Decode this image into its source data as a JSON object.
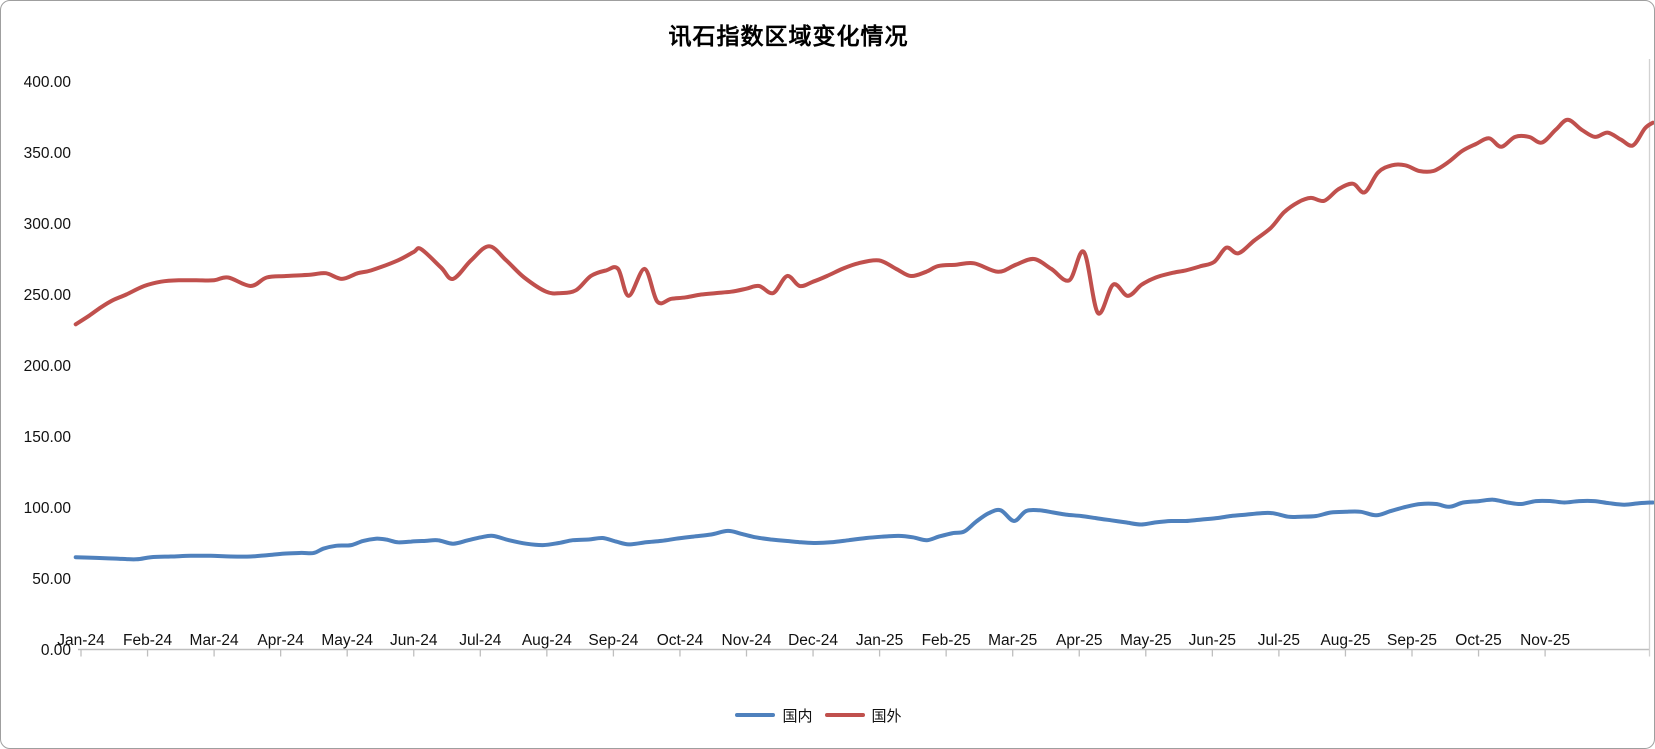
{
  "title": "讯石指数区域变化情况",
  "legend": [
    {
      "id": "domestic",
      "label": "国内",
      "color": "#4F81BD"
    },
    {
      "id": "overseas",
      "label": "国外",
      "color": "#C0504D"
    }
  ],
  "axis_style": {
    "line_color": "#BFBFBF",
    "label_color": "#111111"
  },
  "chart_data": {
    "type": "line",
    "title": "讯石指数区域变化情况",
    "xlabel": "",
    "ylabel": "",
    "ylim": [
      0,
      400
    ],
    "grid": false,
    "legend_position": "bottom-center",
    "x_unit": "fractional months since Jan-24 (approx. weekly samples)",
    "x_tick_labels": [
      "Jan-24",
      "Feb-24",
      "Mar-24",
      "Apr-24",
      "May-24",
      "Jun-24",
      "Jul-24",
      "Aug-24",
      "Sep-24",
      "Oct-24",
      "Nov-24",
      "Dec-24",
      "Jan-25",
      "Feb-25",
      "Mar-25",
      "Apr-25",
      "May-25",
      "Jun-25",
      "Jul-25",
      "Aug-25",
      "Sep-25",
      "Oct-25",
      "Nov-25"
    ],
    "y_tick_labels": [
      "0.00",
      "50.00",
      "100.00",
      "150.00",
      "200.00",
      "250.00",
      "300.00",
      "350.00",
      "400.00"
    ],
    "y_tick_values": [
      0,
      50,
      100,
      150,
      200,
      250,
      300,
      350,
      400
    ],
    "series": [
      {
        "id": "domestic",
        "name": "国内",
        "color": "#4F81BD",
        "points": [
          [
            -0.08,
            65
          ],
          [
            0.23,
            64.5
          ],
          [
            0.53,
            64
          ],
          [
            0.83,
            63.5
          ],
          [
            1.05,
            65
          ],
          [
            1.35,
            65.5
          ],
          [
            1.65,
            66
          ],
          [
            1.95,
            66
          ],
          [
            2.25,
            65.5
          ],
          [
            2.55,
            65.5
          ],
          [
            2.81,
            66.5
          ],
          [
            3.05,
            67.5
          ],
          [
            3.31,
            68
          ],
          [
            3.5,
            68
          ],
          [
            3.64,
            71
          ],
          [
            3.83,
            73
          ],
          [
            4.06,
            73.5
          ],
          [
            4.24,
            76.5
          ],
          [
            4.43,
            78
          ],
          [
            4.58,
            77.5
          ],
          [
            4.76,
            75.5
          ],
          [
            4.96,
            76
          ],
          [
            5.18,
            76.5
          ],
          [
            5.36,
            77
          ],
          [
            5.59,
            74.5
          ],
          [
            5.82,
            77
          ],
          [
            6.01,
            79
          ],
          [
            6.19,
            80
          ],
          [
            6.43,
            77
          ],
          [
            6.69,
            74.5
          ],
          [
            6.94,
            73.5
          ],
          [
            7.18,
            75
          ],
          [
            7.39,
            77
          ],
          [
            7.63,
            77.5
          ],
          [
            7.84,
            78.5
          ],
          [
            8.04,
            76
          ],
          [
            8.23,
            74
          ],
          [
            8.49,
            75.5
          ],
          [
            8.72,
            76.5
          ],
          [
            8.94,
            78
          ],
          [
            9.2,
            79.5
          ],
          [
            9.47,
            81
          ],
          [
            9.72,
            83.5
          ],
          [
            9.92,
            81.5
          ],
          [
            10.14,
            79
          ],
          [
            10.37,
            77.5
          ],
          [
            10.59,
            76.5
          ],
          [
            10.82,
            75.5
          ],
          [
            11.04,
            75
          ],
          [
            11.27,
            75.5
          ],
          [
            11.54,
            77
          ],
          [
            11.8,
            78.5
          ],
          [
            12.05,
            79.5
          ],
          [
            12.29,
            80
          ],
          [
            12.5,
            79
          ],
          [
            12.71,
            77
          ],
          [
            12.89,
            79.5
          ],
          [
            13.1,
            82
          ],
          [
            13.27,
            83
          ],
          [
            13.45,
            90
          ],
          [
            13.64,
            96
          ],
          [
            13.82,
            98
          ],
          [
            14.02,
            90.5
          ],
          [
            14.2,
            97.5
          ],
          [
            14.4,
            98
          ],
          [
            14.61,
            96.5
          ],
          [
            14.8,
            95
          ],
          [
            15.03,
            94
          ],
          [
            15.25,
            92.5
          ],
          [
            15.48,
            91
          ],
          [
            15.7,
            89.5
          ],
          [
            15.93,
            88
          ],
          [
            16.15,
            89.5
          ],
          [
            16.38,
            90.5
          ],
          [
            16.6,
            90.5
          ],
          [
            16.83,
            91.5
          ],
          [
            17.06,
            92.5
          ],
          [
            17.28,
            94
          ],
          [
            17.51,
            95
          ],
          [
            17.73,
            96
          ],
          [
            17.91,
            96
          ],
          [
            18.14,
            93.5
          ],
          [
            18.33,
            93.5
          ],
          [
            18.56,
            94
          ],
          [
            18.78,
            96.5
          ],
          [
            19.01,
            97
          ],
          [
            19.23,
            97
          ],
          [
            19.46,
            94.5
          ],
          [
            19.68,
            97.5
          ],
          [
            19.91,
            100.5
          ],
          [
            20.13,
            102.5
          ],
          [
            20.36,
            102.5
          ],
          [
            20.56,
            100.5
          ],
          [
            20.77,
            103.5
          ],
          [
            21.01,
            104.5
          ],
          [
            21.22,
            105.5
          ],
          [
            21.44,
            103.5
          ],
          [
            21.64,
            102.5
          ],
          [
            21.86,
            104.5
          ],
          [
            22.09,
            104.5
          ],
          [
            22.29,
            103.5
          ],
          [
            22.51,
            104.5
          ],
          [
            22.74,
            104.5
          ],
          [
            22.96,
            103
          ],
          [
            23.19,
            102
          ],
          [
            23.41,
            103
          ],
          [
            23.62,
            103.5
          ]
        ]
      },
      {
        "id": "overseas",
        "name": "国外",
        "color": "#C0504D",
        "points": [
          [
            -0.08,
            229
          ],
          [
            0.12,
            235
          ],
          [
            0.3,
            241
          ],
          [
            0.48,
            246
          ],
          [
            0.68,
            250
          ],
          [
            0.95,
            256
          ],
          [
            1.2,
            259
          ],
          [
            1.47,
            260
          ],
          [
            1.73,
            260
          ],
          [
            2.0,
            260
          ],
          [
            2.21,
            262
          ],
          [
            2.55,
            256
          ],
          [
            2.79,
            262
          ],
          [
            3.08,
            263
          ],
          [
            3.46,
            264
          ],
          [
            3.68,
            265
          ],
          [
            3.92,
            261
          ],
          [
            4.16,
            265
          ],
          [
            4.36,
            267
          ],
          [
            4.76,
            274
          ],
          [
            5.0,
            280
          ],
          [
            5.11,
            282
          ],
          [
            5.41,
            269
          ],
          [
            5.59,
            261
          ],
          [
            5.86,
            274
          ],
          [
            6.13,
            284
          ],
          [
            6.39,
            274
          ],
          [
            6.66,
            262
          ],
          [
            6.99,
            252
          ],
          [
            7.21,
            251
          ],
          [
            7.44,
            253
          ],
          [
            7.66,
            263
          ],
          [
            7.89,
            267
          ],
          [
            8.07,
            268
          ],
          [
            8.23,
            249
          ],
          [
            8.47,
            268
          ],
          [
            8.66,
            245
          ],
          [
            8.87,
            247
          ],
          [
            9.09,
            248
          ],
          [
            9.32,
            250
          ],
          [
            9.54,
            251
          ],
          [
            9.77,
            252
          ],
          [
            9.99,
            254
          ],
          [
            10.19,
            256
          ],
          [
            10.4,
            251
          ],
          [
            10.61,
            263
          ],
          [
            10.8,
            256
          ],
          [
            11.0,
            259
          ],
          [
            11.21,
            263
          ],
          [
            11.44,
            268
          ],
          [
            11.68,
            272
          ],
          [
            11.99,
            274
          ],
          [
            12.25,
            268
          ],
          [
            12.47,
            263
          ],
          [
            12.7,
            266
          ],
          [
            12.88,
            270
          ],
          [
            13.15,
            271
          ],
          [
            13.42,
            272
          ],
          [
            13.78,
            266
          ],
          [
            14.05,
            271
          ],
          [
            14.32,
            275
          ],
          [
            14.58,
            268
          ],
          [
            14.85,
            260
          ],
          [
            15.07,
            280
          ],
          [
            15.28,
            237
          ],
          [
            15.51,
            257
          ],
          [
            15.73,
            249
          ],
          [
            15.94,
            257
          ],
          [
            16.15,
            262
          ],
          [
            16.38,
            265
          ],
          [
            16.6,
            267
          ],
          [
            16.83,
            270
          ],
          [
            17.03,
            273
          ],
          [
            17.21,
            283
          ],
          [
            17.39,
            279
          ],
          [
            17.63,
            288
          ],
          [
            17.88,
            297
          ],
          [
            18.08,
            308
          ],
          [
            18.29,
            315
          ],
          [
            18.48,
            318
          ],
          [
            18.68,
            316
          ],
          [
            18.89,
            324
          ],
          [
            19.11,
            328
          ],
          [
            19.29,
            322
          ],
          [
            19.49,
            336
          ],
          [
            19.7,
            341
          ],
          [
            19.9,
            341
          ],
          [
            20.11,
            337
          ],
          [
            20.32,
            337
          ],
          [
            20.54,
            343
          ],
          [
            20.75,
            351
          ],
          [
            20.96,
            356
          ],
          [
            21.16,
            360
          ],
          [
            21.34,
            354
          ],
          [
            21.55,
            361
          ],
          [
            21.76,
            361
          ],
          [
            21.95,
            357
          ],
          [
            22.16,
            366
          ],
          [
            22.34,
            373
          ],
          [
            22.55,
            366
          ],
          [
            22.75,
            361
          ],
          [
            22.94,
            364
          ],
          [
            23.14,
            359
          ],
          [
            23.32,
            355
          ],
          [
            23.5,
            367
          ],
          [
            23.62,
            371
          ]
        ]
      }
    ]
  }
}
